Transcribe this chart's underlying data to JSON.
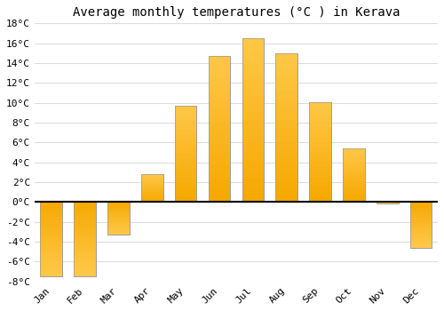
{
  "months": [
    "Jan",
    "Feb",
    "Mar",
    "Apr",
    "May",
    "Jun",
    "Jul",
    "Aug",
    "Sep",
    "Oct",
    "Nov",
    "Dec"
  ],
  "temperatures": [
    -7.5,
    -7.5,
    -3.3,
    2.8,
    9.7,
    14.7,
    16.5,
    15.0,
    10.1,
    5.4,
    -0.1,
    -4.6
  ],
  "title": "Average monthly temperatures (°C ) in Kerava",
  "ylim": [
    -8,
    18
  ],
  "yticks": [
    -8,
    -6,
    -4,
    -2,
    0,
    2,
    4,
    6,
    8,
    10,
    12,
    14,
    16,
    18
  ],
  "bar_color_light": "#FFC84A",
  "bar_color_dark": "#F5A800",
  "bar_edge_color": "#999999",
  "background_color": "#FFFFFF",
  "grid_color": "#DDDDDD",
  "title_fontsize": 10,
  "tick_fontsize": 8,
  "font_family": "monospace"
}
